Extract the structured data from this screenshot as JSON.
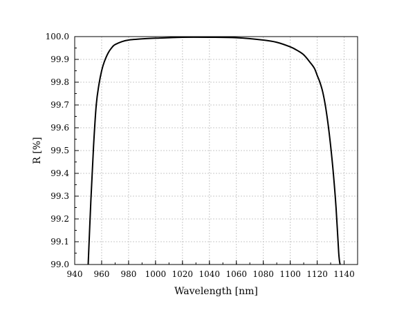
{
  "chart_data": {
    "type": "line",
    "title": "",
    "xlabel": "Wavelength [nm]",
    "ylabel": "R [%]",
    "xlim": [
      940,
      1150
    ],
    "ylim": [
      99.0,
      100.0
    ],
    "xticks": [
      940,
      960,
      980,
      1000,
      1020,
      1040,
      1060,
      1080,
      1100,
      1120,
      1140
    ],
    "yticks": [
      "99.0",
      "99.1",
      "99.2",
      "99.3",
      "99.4",
      "99.5",
      "99.6",
      "99.7",
      "99.8",
      "99.9",
      "100.0"
    ],
    "grid": true,
    "legend": "none",
    "series": [
      {
        "color": "#000000",
        "x": [
          950,
          952,
          954,
          956,
          958,
          960,
          962,
          965,
          968,
          970,
          975,
          980,
          990,
          1000,
          1020,
          1040,
          1060,
          1080,
          1090,
          1100,
          1105,
          1110,
          1115,
          1118,
          1120,
          1122,
          1124,
          1126,
          1128,
          1130,
          1132,
          1134,
          1136,
          1137
        ],
        "y": [
          99.0,
          99.28,
          99.52,
          99.7,
          99.79,
          99.85,
          99.89,
          99.93,
          99.955,
          99.965,
          99.978,
          99.985,
          99.99,
          99.993,
          99.997,
          99.997,
          99.995,
          99.985,
          99.975,
          99.955,
          99.94,
          99.92,
          99.885,
          99.86,
          99.83,
          99.8,
          99.76,
          99.7,
          99.62,
          99.52,
          99.4,
          99.25,
          99.05,
          99.0
        ]
      }
    ]
  }
}
